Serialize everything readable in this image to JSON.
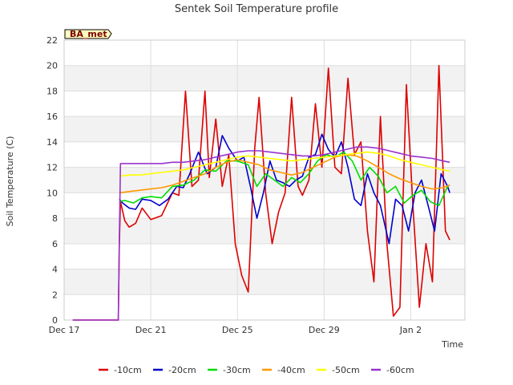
{
  "chart_data": {
    "type": "line",
    "title": "Sentek Soil Temperature profile",
    "xlabel": "Time",
    "ylabel": "Soil Temperature (C)",
    "badge": "BA_met",
    "ylim": [
      0,
      22
    ],
    "yticks": [
      0,
      2,
      4,
      6,
      8,
      10,
      12,
      14,
      16,
      18,
      20,
      22
    ],
    "xlim": [
      0,
      18.5
    ],
    "xticks": [
      {
        "pos": 0,
        "label": "Dec 17"
      },
      {
        "pos": 4,
        "label": "Dec 21"
      },
      {
        "pos": 8,
        "label": "Dec 25"
      },
      {
        "pos": 12,
        "label": "Dec 29"
      },
      {
        "pos": 16,
        "label": "Jan 2"
      }
    ],
    "legend_position": "bottom",
    "series": [
      {
        "name": "-10cm",
        "color": "#dd0000",
        "x": [
          0.4,
          2.5,
          2.55,
          2.6,
          2.8,
          3.0,
          3.3,
          3.6,
          4.0,
          4.5,
          5.0,
          5.3,
          5.6,
          5.9,
          6.2,
          6.5,
          6.7,
          7.0,
          7.3,
          7.6,
          7.9,
          8.2,
          8.5,
          8.8,
          9.0,
          9.3,
          9.6,
          9.9,
          10.2,
          10.5,
          10.8,
          11.0,
          11.3,
          11.6,
          11.9,
          12.2,
          12.5,
          12.8,
          13.1,
          13.4,
          13.7,
          14.0,
          14.3,
          14.6,
          14.9,
          15.2,
          15.5,
          15.8,
          16.1,
          16.4,
          16.7,
          17.0,
          17.3,
          17.6,
          17.8
        ],
        "y": [
          0,
          0,
          6.0,
          9.3,
          7.8,
          7.3,
          7.6,
          8.8,
          7.9,
          8.2,
          10.0,
          9.8,
          18.0,
          10.5,
          11.0,
          18.0,
          11.2,
          15.8,
          10.5,
          13.0,
          6.0,
          3.5,
          2.2,
          13.5,
          17.5,
          10.0,
          6.0,
          8.5,
          10.0,
          17.5,
          10.5,
          9.8,
          11.0,
          17.0,
          12.0,
          19.8,
          12.0,
          11.5,
          19.0,
          13.0,
          14.0,
          7.0,
          3.0,
          16.0,
          6.0,
          0.3,
          1.0,
          18.5,
          9.0,
          1.0,
          6.0,
          3.0,
          20.0,
          7.0,
          6.3
        ]
      },
      {
        "name": "-20cm",
        "color": "#0000cc",
        "x": [
          2.55,
          2.7,
          3.0,
          3.3,
          3.6,
          4.0,
          4.4,
          4.8,
          5.2,
          5.5,
          5.8,
          6.2,
          6.6,
          7.0,
          7.3,
          7.6,
          8.0,
          8.3,
          8.6,
          8.9,
          9.2,
          9.5,
          9.8,
          10.1,
          10.4,
          10.7,
          11.0,
          11.3,
          11.6,
          11.9,
          12.2,
          12.5,
          12.8,
          13.1,
          13.4,
          13.7,
          14.0,
          14.3,
          14.6,
          15.0,
          15.3,
          15.6,
          15.9,
          16.2,
          16.5,
          16.8,
          17.1,
          17.4,
          17.7,
          17.8
        ],
        "y": [
          9.5,
          9.2,
          8.8,
          8.7,
          9.5,
          9.4,
          9.0,
          9.5,
          10.5,
          10.4,
          11.5,
          13.2,
          11.5,
          12.0,
          14.5,
          13.5,
          12.5,
          12.8,
          10.5,
          8.0,
          10.0,
          12.5,
          11.0,
          10.8,
          10.5,
          11.0,
          11.3,
          12.8,
          13.0,
          14.6,
          13.4,
          12.8,
          14.0,
          12.0,
          9.5,
          9.0,
          11.5,
          10.0,
          9.0,
          6.0,
          9.5,
          9.0,
          7.0,
          10.0,
          11.0,
          9.0,
          7.0,
          11.5,
          10.5,
          10.0
        ]
      },
      {
        "name": "-30cm",
        "color": "#00dd00",
        "x": [
          2.55,
          2.8,
          3.2,
          3.6,
          4.0,
          4.5,
          5.0,
          5.5,
          6.0,
          6.5,
          7.0,
          7.5,
          8.0,
          8.5,
          8.9,
          9.3,
          9.7,
          10.1,
          10.5,
          10.9,
          11.3,
          11.7,
          12.1,
          12.5,
          12.9,
          13.3,
          13.7,
          14.1,
          14.5,
          14.9,
          15.3,
          15.7,
          16.1,
          16.5,
          16.9,
          17.3,
          17.7,
          17.8
        ],
        "y": [
          9.3,
          9.4,
          9.2,
          9.6,
          9.7,
          9.6,
          10.5,
          10.6,
          11.0,
          11.8,
          11.7,
          12.5,
          12.5,
          12.2,
          10.5,
          11.5,
          11.0,
          10.5,
          11.2,
          10.8,
          11.5,
          12.5,
          13.0,
          12.8,
          13.2,
          12.5,
          11.0,
          12.0,
          11.3,
          10.0,
          10.5,
          9.2,
          9.8,
          10.2,
          9.3,
          9.0,
          10.5,
          10.6
        ]
      },
      {
        "name": "-40cm",
        "color": "#ff9900",
        "x": [
          2.55,
          3.0,
          3.5,
          4.0,
          4.5,
          5.0,
          5.5,
          6.0,
          6.5,
          7.0,
          7.5,
          8.0,
          8.5,
          9.0,
          9.5,
          10.0,
          10.5,
          11.0,
          11.5,
          12.0,
          12.5,
          13.0,
          13.5,
          14.0,
          14.5,
          15.0,
          15.5,
          16.0,
          16.5,
          17.0,
          17.5,
          17.8
        ],
        "y": [
          10.0,
          10.1,
          10.2,
          10.3,
          10.4,
          10.6,
          10.9,
          11.2,
          11.5,
          12.0,
          12.4,
          12.6,
          12.4,
          12.2,
          11.8,
          11.6,
          11.4,
          11.6,
          12.0,
          12.4,
          12.8,
          13.0,
          12.9,
          12.5,
          12.0,
          11.5,
          11.1,
          10.8,
          10.5,
          10.3,
          10.4,
          10.6
        ]
      },
      {
        "name": "-50cm",
        "color": "#ffff00",
        "x": [
          2.55,
          3.0,
          3.5,
          4.0,
          4.5,
          5.0,
          5.5,
          6.0,
          6.5,
          7.0,
          7.5,
          8.0,
          8.5,
          9.0,
          9.5,
          10.0,
          10.5,
          11.0,
          11.5,
          12.0,
          12.5,
          13.0,
          13.5,
          14.0,
          14.5,
          15.0,
          15.5,
          16.0,
          16.5,
          17.0,
          17.5,
          17.8
        ],
        "y": [
          11.3,
          11.4,
          11.4,
          11.5,
          11.6,
          11.7,
          11.8,
          12.0,
          12.2,
          12.4,
          12.6,
          12.8,
          12.9,
          12.8,
          12.7,
          12.6,
          12.5,
          12.6,
          12.7,
          12.8,
          12.9,
          13.0,
          13.1,
          13.2,
          13.1,
          12.9,
          12.6,
          12.4,
          12.2,
          12.0,
          11.8,
          11.7
        ]
      },
      {
        "name": "-60cm",
        "color": "#9933cc",
        "x": [
          0.4,
          2.5,
          2.55,
          2.6,
          3.0,
          3.5,
          4.0,
          4.5,
          5.0,
          5.5,
          6.0,
          6.5,
          7.0,
          7.5,
          8.0,
          8.5,
          9.0,
          9.5,
          10.0,
          10.5,
          11.0,
          11.5,
          12.0,
          12.5,
          13.0,
          13.5,
          14.0,
          14.5,
          15.0,
          15.5,
          16.0,
          16.5,
          17.0,
          17.5,
          17.8
        ],
        "y": [
          0,
          0,
          6.5,
          12.3,
          12.3,
          12.3,
          12.3,
          12.3,
          12.4,
          12.4,
          12.5,
          12.6,
          12.8,
          13.0,
          13.2,
          13.3,
          13.3,
          13.2,
          13.1,
          13.0,
          12.9,
          12.9,
          13.0,
          13.2,
          13.4,
          13.6,
          13.6,
          13.5,
          13.3,
          13.1,
          12.9,
          12.8,
          12.7,
          12.5,
          12.4
        ]
      }
    ]
  }
}
